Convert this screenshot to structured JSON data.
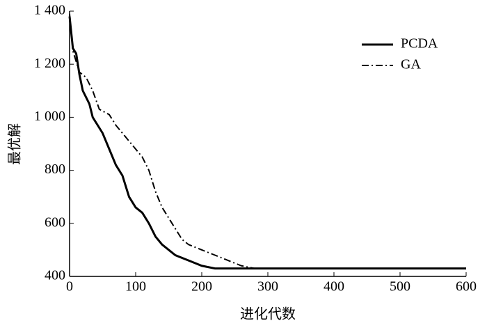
{
  "chart_data": {
    "type": "line",
    "x_label": "进化代数",
    "y_label": "最优解",
    "xlim": [
      0,
      600
    ],
    "xticks": [
      0,
      100,
      200,
      300,
      400,
      500,
      600
    ],
    "ylim": [
      400,
      1400
    ],
    "yticks": [
      400,
      600,
      800,
      {
        "value": 1000,
        "label": "1 000"
      },
      {
        "value": 1200,
        "label": "1 200"
      },
      {
        "value": 1400,
        "label": "1 400"
      }
    ],
    "legend": "top-right",
    "series": [
      {
        "name": "PCDA",
        "color": "#000000",
        "dash": "solid",
        "x": [
          0,
          5,
          10,
          15,
          20,
          30,
          35,
          50,
          60,
          70,
          80,
          90,
          100,
          110,
          120,
          130,
          140,
          150,
          160,
          180,
          200,
          220,
          600
        ],
        "values": [
          1380,
          1260,
          1240,
          1160,
          1100,
          1050,
          1000,
          940,
          880,
          820,
          780,
          700,
          660,
          640,
          600,
          550,
          520,
          500,
          480,
          460,
          440,
          430,
          430
        ]
      },
      {
        "name": "GA",
        "color": "#000000",
        "dash": "dashdot",
        "x": [
          0,
          5,
          15,
          25,
          35,
          45,
          60,
          70,
          90,
          110,
          120,
          130,
          140,
          160,
          170,
          180,
          200,
          230,
          260,
          280,
          600
        ],
        "values": [
          1390,
          1250,
          1170,
          1150,
          1100,
          1030,
          1010,
          970,
          910,
          850,
          800,
          720,
          660,
          580,
          540,
          520,
          500,
          470,
          440,
          430,
          430
        ]
      }
    ]
  }
}
